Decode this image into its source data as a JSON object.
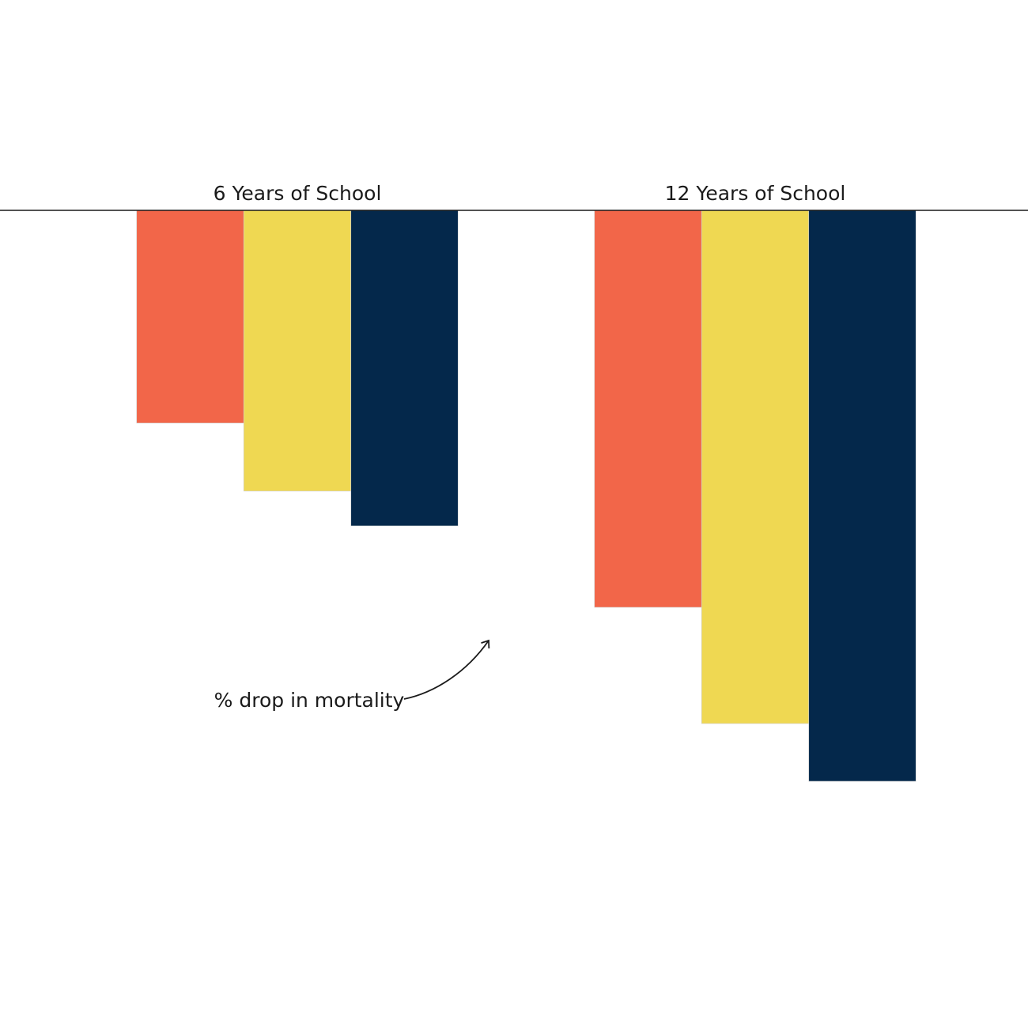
{
  "chart_data": {
    "type": "bar",
    "categories": [
      "6 Years of School",
      "12 Years of School"
    ],
    "series": [
      {
        "color": "#f26649",
        "values": [
          26.9,
          50.2
        ]
      },
      {
        "color": "#efd852",
        "values": [
          35.5,
          64.9
        ]
      },
      {
        "color": "#04284b",
        "values": [
          39.9,
          72.2
        ]
      }
    ],
    "ylim": [
      0,
      100
    ],
    "y_inverted": true,
    "annotation": "% drop in mortality"
  }
}
